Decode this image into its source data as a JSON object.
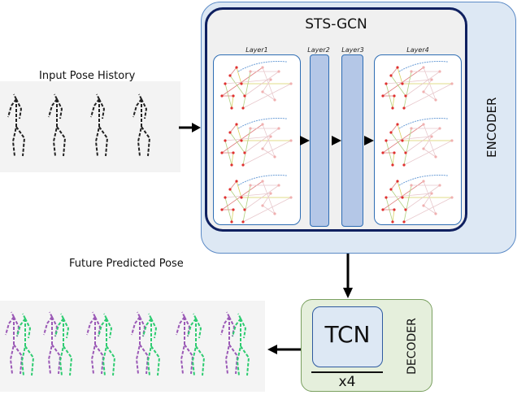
{
  "input": {
    "label": "Input Pose History"
  },
  "output": {
    "label": "Future Predicted Pose"
  },
  "encoder": {
    "label": "ENCODER",
    "color": "#dde8f4",
    "border": "#5b8ac6"
  },
  "stsgcn": {
    "title": "STS-GCN",
    "layers": [
      {
        "label": "Layer1"
      },
      {
        "label": "Layer2"
      },
      {
        "label": "Layer3"
      },
      {
        "label": "Layer4"
      }
    ],
    "border": "#0f2060",
    "bar_color": "#b4c7e7"
  },
  "decoder": {
    "label": "DECODER",
    "block": "TCN",
    "repeat": "x4",
    "color": "#e5efdc"
  }
}
